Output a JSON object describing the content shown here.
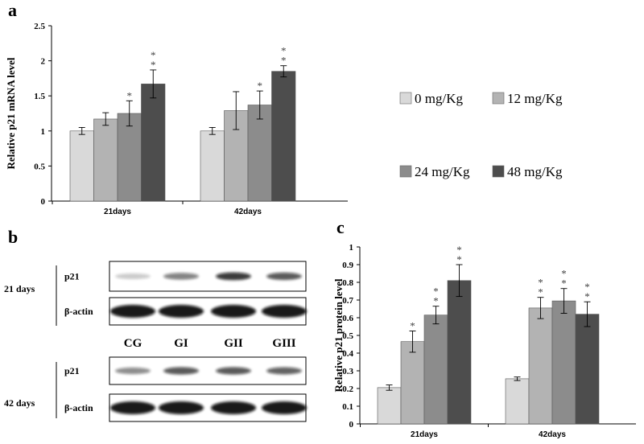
{
  "panel_labels": [
    "a",
    "b",
    "c"
  ],
  "chart_data": [
    {
      "type": "bar",
      "y_label": "Relative p21 mRNA level",
      "categories": [
        "21days",
        "42days"
      ],
      "ylim": [
        0,
        2.5
      ],
      "yticks": [
        0,
        0.5,
        1,
        1.5,
        2,
        2.5
      ],
      "legend": true,
      "series": [
        {
          "name": "0 mg/Kg",
          "color": "#d9d9d9",
          "values": [
            1.0,
            1.0
          ],
          "errors": [
            0.05,
            0.05
          ],
          "annotations": [
            null,
            null
          ]
        },
        {
          "name": "12 mg/Kg",
          "color": "#b3b3b3",
          "values": [
            1.17,
            1.29
          ],
          "errors": [
            0.09,
            0.27
          ],
          "annotations": [
            null,
            null
          ]
        },
        {
          "name": "24 mg/Kg",
          "color": "#8c8c8c",
          "values": [
            1.25,
            1.37
          ],
          "errors": [
            0.18,
            0.2
          ],
          "annotations": [
            "*",
            "*"
          ]
        },
        {
          "name": "48 mg/Kg",
          "color": "#4d4d4d",
          "values": [
            1.67,
            1.85
          ],
          "errors": [
            0.2,
            0.08
          ],
          "annotations": [
            "**",
            "**"
          ]
        }
      ]
    },
    {
      "type": "bar",
      "y_label": "Relative p21 protein level",
      "categories": [
        "21days",
        "42days"
      ],
      "ylim": [
        0,
        1
      ],
      "yticks": [
        0,
        0.1,
        0.2,
        0.3,
        0.4,
        0.5,
        0.6,
        0.7,
        0.8,
        0.9,
        1
      ],
      "legend": false,
      "series": [
        {
          "name": "0 mg/Kg",
          "color": "#d9d9d9",
          "values": [
            0.205,
            0.255
          ],
          "errors": [
            0.015,
            0.01
          ],
          "annotations": [
            null,
            null
          ]
        },
        {
          "name": "12 mg/Kg",
          "color": "#b3b3b3",
          "values": [
            0.465,
            0.655
          ],
          "errors": [
            0.06,
            0.06
          ],
          "annotations": [
            "*",
            "**"
          ]
        },
        {
          "name": "24 mg/Kg",
          "color": "#8c8c8c",
          "values": [
            0.615,
            0.695
          ],
          "errors": [
            0.05,
            0.07
          ],
          "annotations": [
            "**",
            "**"
          ]
        },
        {
          "name": "48 mg/Kg",
          "color": "#4d4d4d",
          "values": [
            0.81,
            0.62
          ],
          "errors": [
            0.09,
            0.07
          ],
          "annotations": [
            "**",
            "**"
          ]
        }
      ]
    }
  ],
  "blot": {
    "lanes": [
      "CG",
      "GI",
      "GII",
      "GIII"
    ],
    "groups": [
      {
        "label": "21 days",
        "bands": [
          "p21",
          "β-actin"
        ]
      },
      {
        "label": "42 days",
        "bands": [
          "p21",
          "β-actin"
        ]
      }
    ]
  }
}
